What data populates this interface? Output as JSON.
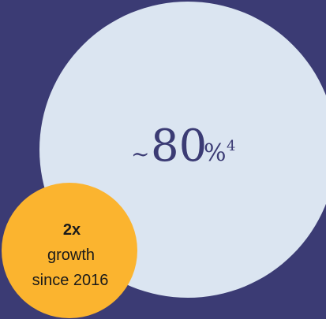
{
  "graphic": {
    "colors": {
      "background": "#3b3b74",
      "large_circle": "#dbe5f1",
      "small_circle": "#fbb42f",
      "large_text": "#3b3b74",
      "small_text": "#1a1a1a"
    },
    "large_circle": {
      "prefix": "~",
      "value": "80",
      "suffix": "%",
      "footnote": "4"
    },
    "small_circle": {
      "headline": "2x",
      "line1": "growth",
      "line2": "since 2016"
    }
  }
}
